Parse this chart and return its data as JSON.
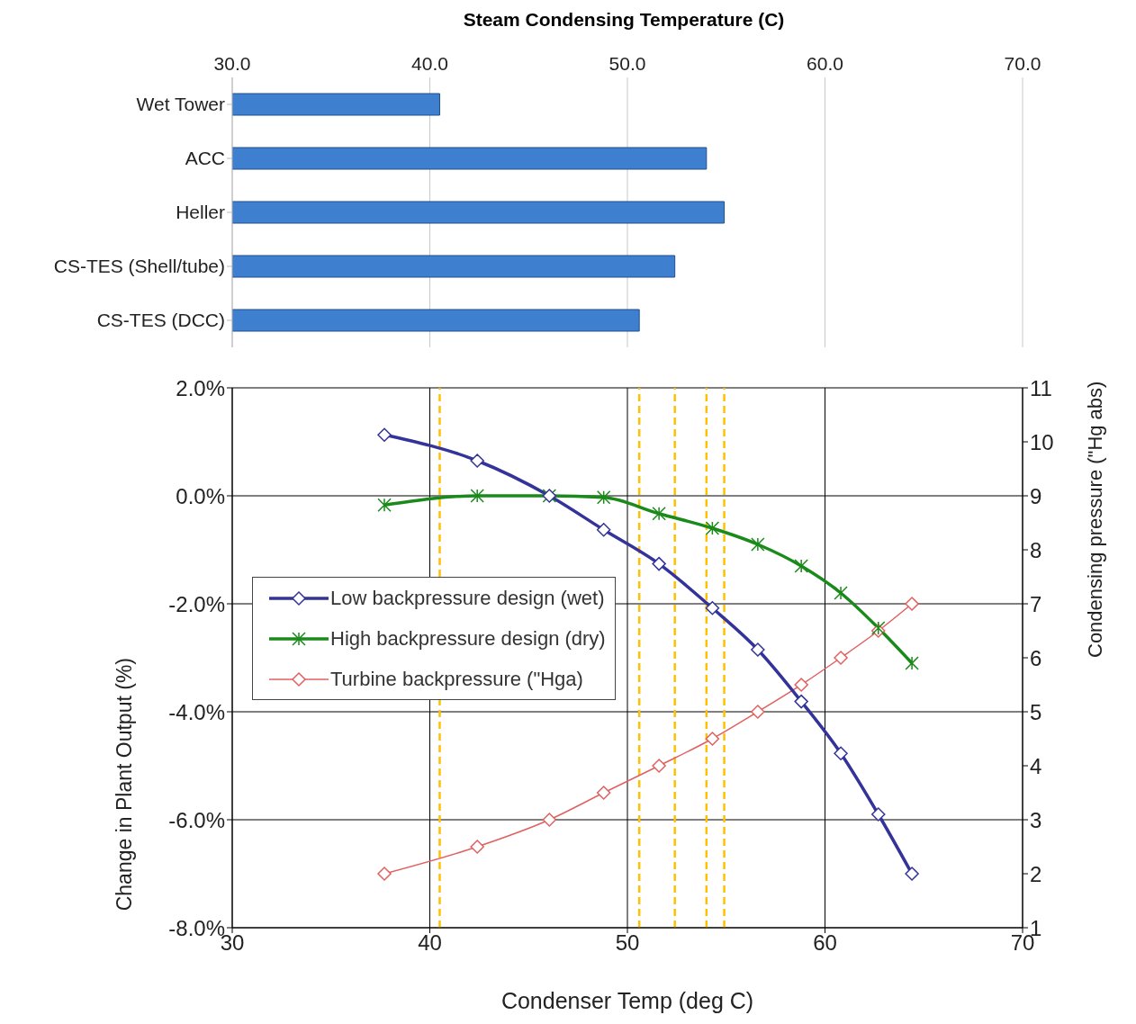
{
  "chart_data": [
    {
      "type": "bar",
      "orientation": "horizontal",
      "xlabel": "Steam Condensing Temperature (C)",
      "categories": [
        "Wet Tower",
        "ACC",
        "Heller",
        "CS-TES (Shell/tube)",
        "CS-TES (DCC)"
      ],
      "values": [
        40.5,
        54.0,
        54.9,
        52.4,
        50.6
      ],
      "color": "#3f7fd0",
      "xlim": [
        30,
        70
      ],
      "xticks": [
        {
          "value": 30,
          "label": "30.0"
        },
        {
          "value": 40,
          "label": "40.0"
        },
        {
          "value": 50,
          "label": "50.0"
        },
        {
          "value": 60,
          "label": "60.0"
        },
        {
          "value": 70,
          "label": "70.0"
        }
      ],
      "grid": "x",
      "legend": false
    },
    {
      "type": "line",
      "xlabel": "Condenser Temp (deg C)",
      "ylabel": "Change in Plant Output (%)",
      "y2label": "Condensing pressure (\"Hg abs)",
      "x": [
        37.7,
        42.4,
        46.05,
        48.8,
        51.6,
        54.3,
        56.6,
        58.8,
        60.8,
        62.7,
        64.4
      ],
      "series": [
        {
          "name": "Low backpressure design (wet)",
          "color": "#33339a",
          "marker": "diamond",
          "values": [
            1.13,
            0.65,
            0.0,
            -0.63,
            -1.26,
            -2.08,
            -2.85,
            -3.81,
            -4.77,
            -5.9,
            -7.0
          ]
        },
        {
          "name": "High backpressure design (dry)",
          "color": "#1a8a1a",
          "marker": "cross",
          "values": [
            -0.17,
            0.0,
            0.0,
            -0.03,
            -0.33,
            -0.6,
            -0.9,
            -1.3,
            -1.8,
            -2.45,
            -3.1
          ]
        },
        {
          "name": "Turbine backpressure (\"Hga)",
          "color": "#e06060",
          "marker": "diamond",
          "axis": "y2",
          "values": [
            2,
            2.5,
            3,
            3.5,
            4,
            4.5,
            5,
            5.5,
            6,
            6.5,
            7
          ]
        }
      ],
      "xlim": [
        30,
        70
      ],
      "xticks": [
        30,
        40,
        50,
        60,
        70
      ],
      "ylim": [
        -8,
        2
      ],
      "yticks": [
        {
          "value": -8,
          "label": "-8.0%"
        },
        {
          "value": -6,
          "label": "-6.0%"
        },
        {
          "value": -4,
          "label": "-4.0%"
        },
        {
          "value": -2,
          "label": "-2.0%"
        },
        {
          "value": 0,
          "label": "0.0%"
        },
        {
          "value": 2,
          "label": "2.0%"
        }
      ],
      "y2lim": [
        1,
        11
      ],
      "y2ticks": [
        1,
        2,
        3,
        4,
        5,
        6,
        7,
        8,
        9,
        10,
        11
      ],
      "ref_lines": [
        {
          "axis": "x",
          "value": 40.5,
          "color": "#ffc000",
          "line_style": "dashed"
        },
        {
          "axis": "x",
          "value": 54.0,
          "color": "#ffc000",
          "line_style": "dashed"
        },
        {
          "axis": "x",
          "value": 54.9,
          "color": "#ffc000",
          "line_style": "dashed"
        },
        {
          "axis": "x",
          "value": 52.4,
          "color": "#ffc000",
          "line_style": "dashed"
        },
        {
          "axis": "x",
          "value": 50.6,
          "color": "#ffc000",
          "line_style": "dashed"
        }
      ],
      "grid": true,
      "legend": "left",
      "line_style": "solid"
    }
  ]
}
